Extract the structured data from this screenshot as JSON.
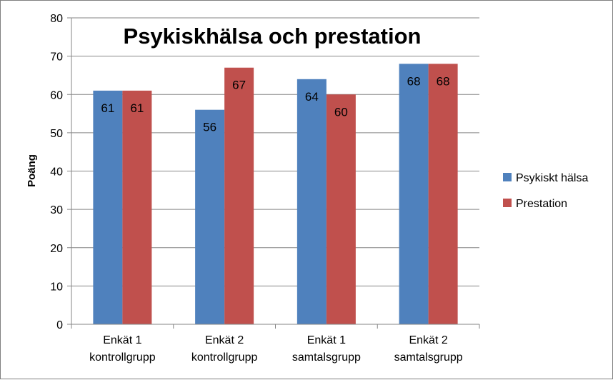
{
  "chart_data": {
    "type": "bar",
    "title": "Psykiskhälsa och prestation",
    "ylabel": "Poäng",
    "xlabel": "",
    "ylim": [
      0,
      80
    ],
    "ytick_step": 10,
    "grid": true,
    "legend_position": "right",
    "categories": [
      [
        "Enkät 1",
        "kontrollgrupp"
      ],
      [
        "Enkät 2",
        "kontrollgrupp"
      ],
      [
        "Enkät 1",
        "samtalsgrupp"
      ],
      [
        "Enkät 2",
        "samtalsgrupp"
      ]
    ],
    "series": [
      {
        "name": "Psykiskt hälsa",
        "color": "#4f81bd",
        "values": [
          61,
          56,
          64,
          68
        ]
      },
      {
        "name": "Prestation",
        "color": "#c0504d",
        "values": [
          61,
          67,
          60,
          68
        ]
      }
    ]
  }
}
